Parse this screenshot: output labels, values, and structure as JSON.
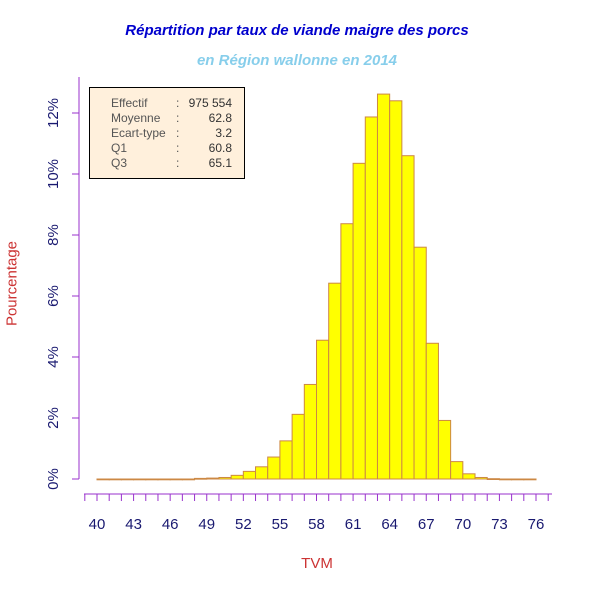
{
  "chart_data": {
    "type": "bar",
    "title": "Répartition par taux de viande maigre des porcs",
    "subtitle": "en Région wallonne en 2014",
    "xlabel": "TVM",
    "ylabel": "Pourcentage",
    "xlim": [
      40,
      76
    ],
    "ylim": [
      0,
      12
    ],
    "x_ticks": [
      "40",
      "43",
      "46",
      "49",
      "52",
      "55",
      "58",
      "61",
      "64",
      "67",
      "70",
      "73",
      "76"
    ],
    "y_ticks": [
      "0%",
      "2%",
      "4%",
      "6%",
      "8%",
      "10%",
      "12%"
    ],
    "bin_width": 1,
    "bin_starts": [
      40,
      41,
      42,
      43,
      44,
      45,
      46,
      47,
      48,
      49,
      50,
      51,
      52,
      53,
      54,
      55,
      56,
      57,
      58,
      59,
      60,
      61,
      62,
      63,
      64,
      65,
      66,
      67,
      68,
      69,
      70,
      71,
      72,
      73,
      74,
      75
    ],
    "values": [
      0,
      0,
      0,
      0,
      0,
      0,
      0,
      0,
      0.02,
      0.03,
      0.05,
      0.12,
      0.25,
      0.4,
      0.72,
      1.25,
      2.12,
      3.1,
      4.55,
      6.42,
      8.37,
      10.35,
      11.87,
      12.62,
      12.4,
      10.6,
      7.6,
      4.45,
      1.92,
      0.57,
      0.17,
      0.05,
      0.01,
      0,
      0,
      0
    ],
    "grid": false,
    "colors": {
      "bar_fill": "#ffff00",
      "bar_border": "#cc8844",
      "axis": "#9932cc",
      "tick_label": "#191970"
    }
  },
  "stats": {
    "rows": [
      {
        "label": "Effectif",
        "value": "975 554"
      },
      {
        "label": "Moyenne",
        "value": "62.8"
      },
      {
        "label": "Ecart-type",
        "value": "3.2"
      },
      {
        "label": "Q1",
        "value": "60.8"
      },
      {
        "label": "Q3",
        "value": "65.1"
      }
    ],
    "colon": ":"
  }
}
